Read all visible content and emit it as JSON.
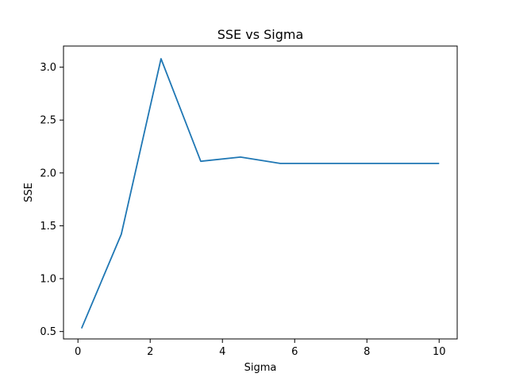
{
  "chart_data": {
    "type": "line",
    "title": "SSE vs Sigma",
    "xlabel": "Sigma",
    "ylabel": "SSE",
    "xlim": [
      -0.4,
      10.5
    ],
    "ylim": [
      0.43,
      3.2
    ],
    "xticks": [
      0,
      2,
      4,
      6,
      8,
      10
    ],
    "xtick_labels": [
      "0",
      "2",
      "4",
      "6",
      "8",
      "10"
    ],
    "yticks": [
      0.5,
      1.0,
      1.5,
      2.0,
      2.5,
      3.0
    ],
    "ytick_labels": [
      "0.5",
      "1.0",
      "1.5",
      "2.0",
      "2.5",
      "3.0"
    ],
    "grid": false,
    "series": [
      {
        "color": "#1f77b4",
        "x": [
          0.1,
          1.2,
          2.3,
          3.4,
          4.5,
          5.6,
          6.7,
          7.8,
          8.9,
          10.0
        ],
        "y": [
          0.53,
          1.42,
          3.08,
          2.11,
          2.15,
          2.09,
          2.09,
          2.09,
          2.09,
          2.09
        ]
      }
    ]
  }
}
